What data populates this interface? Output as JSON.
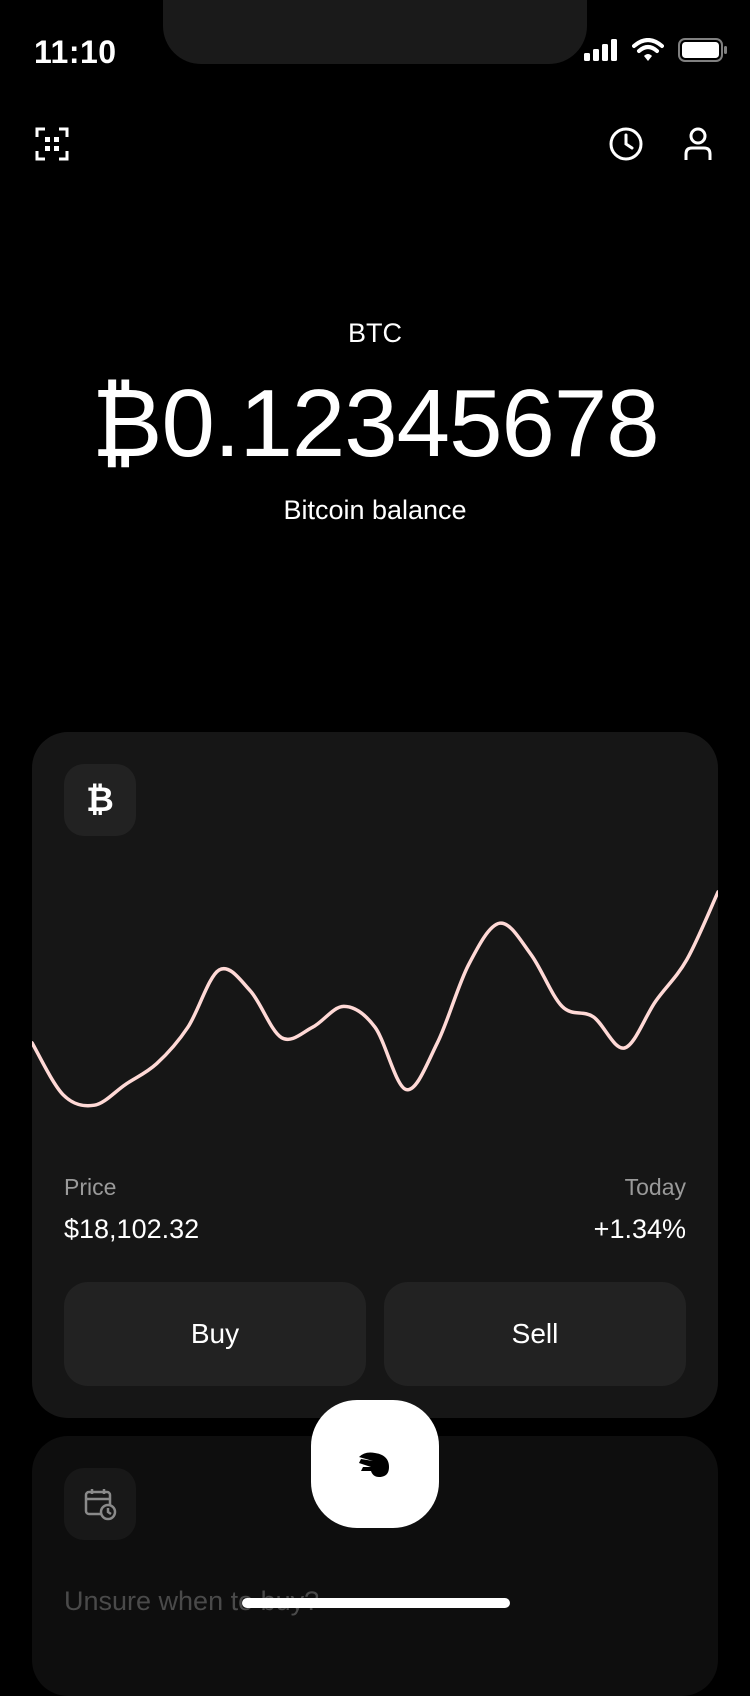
{
  "status_bar": {
    "time": "11:10"
  },
  "icons": {
    "scan": "qr-scan-icon",
    "history": "clock-icon",
    "profile": "user-icon",
    "signal": "signal-icon",
    "wifi": "wifi-icon",
    "battery": "battery-icon"
  },
  "balance": {
    "ticker": "BTC",
    "amount": "₿0.12345678",
    "label": "Bitcoin balance"
  },
  "price_card": {
    "coin_symbol": "₿",
    "price_label": "Price",
    "price_value": "$18,102.32",
    "today_label": "Today",
    "today_value": "+1.34%",
    "buy_label": "Buy",
    "sell_label": "Sell",
    "line_color": "#ffd9d6"
  },
  "chart_data": {
    "type": "line",
    "title": "",
    "xlabel": "",
    "ylabel": "",
    "x": [
      0,
      1,
      2,
      3,
      4,
      5,
      6,
      7,
      8,
      9,
      10,
      11,
      12,
      13,
      14,
      15,
      16,
      17,
      18,
      19,
      20,
      21,
      22
    ],
    "values": [
      42,
      22,
      18,
      26,
      34,
      48,
      70,
      62,
      44,
      48,
      56,
      48,
      24,
      42,
      72,
      88,
      76,
      56,
      52,
      40,
      58,
      74,
      100
    ],
    "ylim": [
      0,
      100
    ],
    "grid": false,
    "legend": "none"
  },
  "schedule_card": {
    "icon": "calendar-clock-icon",
    "text": "Unsure when to buy?"
  },
  "fab": {
    "icon": "cash-app-pay-icon"
  }
}
